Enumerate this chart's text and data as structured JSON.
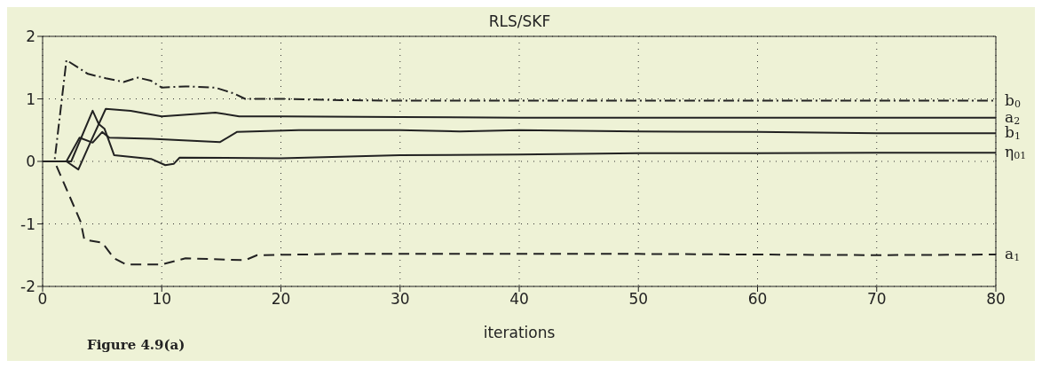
{
  "chart_data": {
    "type": "line",
    "title": "RLS/SKF",
    "xlabel": "iterations",
    "annotations": [
      "Figure 4.9(a)"
    ],
    "xlim": [
      0,
      80
    ],
    "xticks": [
      0,
      10,
      20,
      30,
      40,
      50,
      60,
      70,
      80
    ],
    "ylim": [
      -2,
      2
    ],
    "yticks": [
      -2,
      -1,
      0,
      1,
      2
    ],
    "grid": true,
    "marker": "none",
    "series": [
      {
        "name": "b$_{0}$",
        "color": "#222222",
        "line_style": "dashdot",
        "x": [
          0,
          1,
          2,
          3.8,
          5.3,
          6.8,
          8,
          9.1,
          10,
          12,
          14.5,
          16,
          17,
          20,
          25,
          30,
          40,
          50,
          60,
          70,
          80
        ],
        "values": [
          0,
          0,
          1.62,
          1.4,
          1.33,
          1.27,
          1.34,
          1.29,
          1.18,
          1.2,
          1.18,
          1.09,
          1.0,
          1.0,
          0.98,
          0.97,
          0.97,
          0.97,
          0.97,
          0.97,
          0.97
        ]
      },
      {
        "name": "a$_{2}$",
        "color": "#222222",
        "line_style": "solid",
        "x": [
          0,
          2,
          3,
          4,
          5.3,
          7.4,
          10,
          14.5,
          16.5,
          20,
          30,
          40,
          50,
          60,
          70,
          80
        ],
        "values": [
          0,
          0,
          -0.13,
          0.3,
          0.84,
          0.81,
          0.72,
          0.78,
          0.72,
          0.72,
          0.71,
          0.7,
          0.7,
          0.7,
          0.7,
          0.7
        ]
      },
      {
        "name": "b$_{1}$",
        "color": "#222222",
        "line_style": "solid",
        "x": [
          0,
          2,
          3.1,
          4.2,
          5,
          5.6,
          9.1,
          14.9,
          16.3,
          21.5,
          30,
          35,
          40,
          50,
          60,
          70,
          75,
          80
        ],
        "values": [
          0,
          0,
          0.38,
          0.3,
          0.47,
          0.38,
          0.36,
          0.31,
          0.47,
          0.5,
          0.5,
          0.48,
          0.5,
          0.48,
          0.47,
          0.45,
          0.45,
          0.45
        ]
      },
      {
        "name": "η$_{01}$",
        "color": "#222222",
        "line_style": "solid",
        "x": [
          0,
          2.4,
          4.2,
          4.7,
          5.2,
          6,
          9.1,
          10.3,
          11,
          11.5,
          20,
          30,
          40,
          50,
          60,
          70,
          80
        ],
        "values": [
          0,
          0,
          0.81,
          0.6,
          0.52,
          0.1,
          0.04,
          -0.06,
          -0.04,
          0.06,
          0.05,
          0.1,
          0.11,
          0.13,
          0.13,
          0.14,
          0.14
        ]
      },
      {
        "name": "a$_{1}$",
        "color": "#222222",
        "line_style": "dashed",
        "x": [
          0,
          1,
          3.2,
          3.5,
          5,
          6,
          7,
          10,
          12,
          17,
          18,
          25,
          40,
          50,
          60,
          70,
          80
        ],
        "values": [
          0,
          0,
          -0.97,
          -1.25,
          -1.3,
          -1.55,
          -1.65,
          -1.65,
          -1.55,
          -1.58,
          -1.5,
          -1.48,
          -1.48,
          -1.48,
          -1.49,
          -1.5,
          -1.49
        ]
      }
    ]
  }
}
